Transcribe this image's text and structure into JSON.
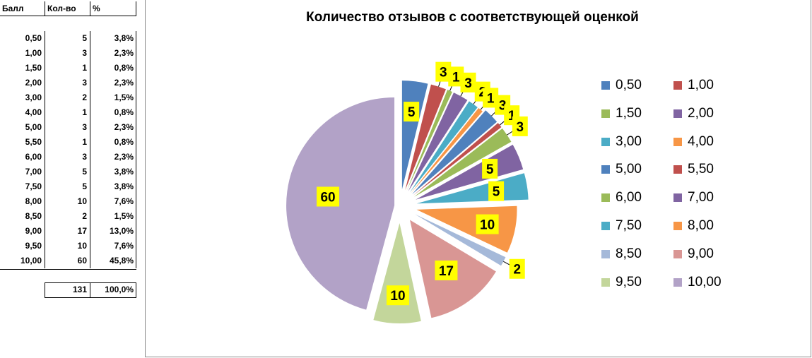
{
  "table": {
    "headers": [
      "Балл",
      "Кол-во",
      "%"
    ],
    "rows": [
      [
        "0,50",
        "5",
        "3,8%"
      ],
      [
        "1,00",
        "3",
        "2,3%"
      ],
      [
        "1,50",
        "1",
        "0,8%"
      ],
      [
        "2,00",
        "3",
        "2,3%"
      ],
      [
        "3,00",
        "2",
        "1,5%"
      ],
      [
        "4,00",
        "1",
        "0,8%"
      ],
      [
        "5,00",
        "3",
        "2,3%"
      ],
      [
        "5,50",
        "1",
        "0,8%"
      ],
      [
        "6,00",
        "3",
        "2,3%"
      ],
      [
        "7,00",
        "5",
        "3,8%"
      ],
      [
        "7,50",
        "5",
        "3,8%"
      ],
      [
        "8,00",
        "10",
        "7,6%"
      ],
      [
        "8,50",
        "2",
        "1,5%"
      ],
      [
        "9,00",
        "17",
        "13,0%"
      ],
      [
        "9,50",
        "10",
        "7,6%"
      ],
      [
        "10,00",
        "60",
        "45,8%"
      ]
    ],
    "total_count": "131",
    "total_percent": "100,0%"
  },
  "chart_data": {
    "type": "pie",
    "title": "Количество отзывов с соответствующей оценкой",
    "categories": [
      "0,50",
      "1,00",
      "1,50",
      "2,00",
      "3,00",
      "4,00",
      "5,00",
      "5,50",
      "6,00",
      "7,00",
      "7,50",
      "8,00",
      "8,50",
      "9,00",
      "9,50",
      "10,00"
    ],
    "values": [
      5,
      3,
      1,
      3,
      2,
      1,
      3,
      1,
      3,
      5,
      5,
      10,
      2,
      17,
      10,
      60
    ],
    "colors": [
      "#4f81bd",
      "#c0504d",
      "#9bbb59",
      "#8064a2",
      "#4bacc6",
      "#f79646",
      "#4f81bd",
      "#c0504d",
      "#9bbb59",
      "#8064a2",
      "#4bacc6",
      "#f79646",
      "#a5b9d9",
      "#d99694",
      "#c3d69b",
      "#b2a2c7"
    ],
    "exploded": true,
    "data_labels": true,
    "data_label_background": "#ffff00",
    "legend_position": "right"
  }
}
